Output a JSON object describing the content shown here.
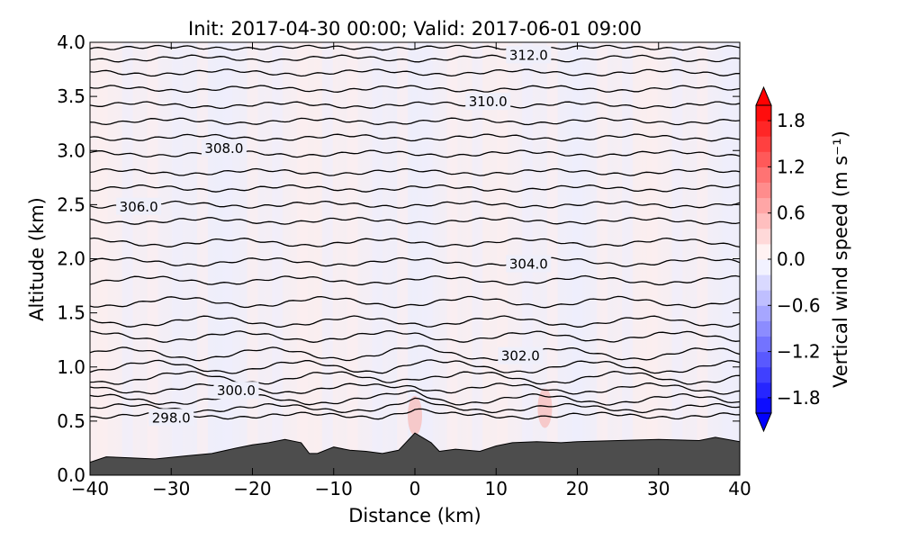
{
  "chart_data": {
    "type": "contour",
    "title": "Init: 2017-04-30 00:00; Valid: 2017-06-01 09:00",
    "xlabel": "Distance (km)",
    "ylabel": "Altitude (km)",
    "xlim": [
      -40,
      40
    ],
    "ylim": [
      0.0,
      4.0
    ],
    "x_ticks": [
      -40,
      -30,
      -20,
      -10,
      0,
      10,
      20,
      30,
      40
    ],
    "x_tick_labels": [
      "−40",
      "−30",
      "−20",
      "−10",
      "0",
      "10",
      "20",
      "30",
      "40"
    ],
    "y_ticks": [
      0.0,
      0.5,
      1.0,
      1.5,
      2.0,
      2.5,
      3.0,
      3.5,
      4.0
    ],
    "y_tick_labels": [
      "0.0",
      "0.5",
      "1.0",
      "1.5",
      "2.0",
      "2.5",
      "3.0",
      "3.5",
      "4.0"
    ],
    "colorbar": {
      "label": "Vertical wind speed (m s⁻¹)",
      "range": [
        -2.0,
        2.0
      ],
      "ticks": [
        1.8,
        1.2,
        0.6,
        0.0,
        -0.6,
        -1.2,
        -1.8
      ],
      "tick_labels": [
        "1.8",
        "1.2",
        "0.6",
        "0.0",
        "−0.6",
        "−1.2",
        "−1.8"
      ],
      "colormap": "bwr",
      "extend": "both"
    },
    "contour_labels": [
      {
        "text": "312.0",
        "x": 14,
        "y": 3.88
      },
      {
        "text": "310.0",
        "x": 9,
        "y": 3.45
      },
      {
        "text": "308.0",
        "x": -23.5,
        "y": 3.02
      },
      {
        "text": "306.0",
        "x": -34,
        "y": 2.48
      },
      {
        "text": "304.0",
        "x": 14,
        "y": 1.95
      },
      {
        "text": "302.0",
        "x": 13,
        "y": 1.1
      },
      {
        "text": "300.0",
        "x": -22,
        "y": 0.78
      },
      {
        "text": "298.0",
        "x": -30,
        "y": 0.53
      }
    ],
    "terrain": {
      "x": [
        -40,
        -38,
        -35,
        -32,
        -28,
        -25,
        -22,
        -20,
        -18,
        -16,
        -14,
        -13,
        -12,
        -10,
        -8,
        -6,
        -4,
        -2,
        0,
        2,
        3,
        5,
        8,
        10,
        12,
        15,
        18,
        20,
        25,
        30,
        35,
        37,
        40
      ],
      "y": [
        0.12,
        0.17,
        0.16,
        0.15,
        0.18,
        0.2,
        0.25,
        0.28,
        0.3,
        0.33,
        0.3,
        0.2,
        0.2,
        0.26,
        0.23,
        0.22,
        0.2,
        0.23,
        0.39,
        0.3,
        0.22,
        0.24,
        0.22,
        0.27,
        0.3,
        0.31,
        0.3,
        0.31,
        0.32,
        0.33,
        0.32,
        0.35,
        0.31
      ]
    },
    "isentrope_levels": [
      {
        "base": 0.55,
        "amp": 0.02
      },
      {
        "base": 0.62,
        "amp": 0.03
      },
      {
        "base": 0.7,
        "amp": 0.04
      },
      {
        "base": 0.8,
        "amp": 0.04
      },
      {
        "base": 0.9,
        "amp": 0.05
      },
      {
        "base": 1.0,
        "amp": 0.05
      },
      {
        "base": 1.12,
        "amp": 0.05
      },
      {
        "base": 1.28,
        "amp": 0.04
      },
      {
        "base": 1.42,
        "amp": 0.04
      },
      {
        "base": 1.6,
        "amp": 0.04
      },
      {
        "base": 1.8,
        "amp": 0.03
      },
      {
        "base": 1.97,
        "amp": 0.03
      },
      {
        "base": 2.15,
        "amp": 0.03
      },
      {
        "base": 2.35,
        "amp": 0.02
      },
      {
        "base": 2.5,
        "amp": 0.02
      },
      {
        "base": 2.65,
        "amp": 0.02
      },
      {
        "base": 2.8,
        "amp": 0.02
      },
      {
        "base": 2.97,
        "amp": 0.02
      },
      {
        "base": 3.12,
        "amp": 0.02
      },
      {
        "base": 3.27,
        "amp": 0.02
      },
      {
        "base": 3.42,
        "amp": 0.02
      },
      {
        "base": 3.57,
        "amp": 0.02
      },
      {
        "base": 3.72,
        "amp": 0.02
      },
      {
        "base": 3.85,
        "amp": 0.02
      },
      {
        "base": 3.95,
        "amp": 0.01
      }
    ],
    "updraft_spots": [
      {
        "x": 0,
        "y": 0.55
      },
      {
        "x": 16,
        "y": 0.62
      }
    ],
    "colors": {
      "terrain": "#4d4d4d",
      "background_pos": "#fdeeee",
      "background_neg": "#eeeefd",
      "contour": "#000000"
    }
  }
}
